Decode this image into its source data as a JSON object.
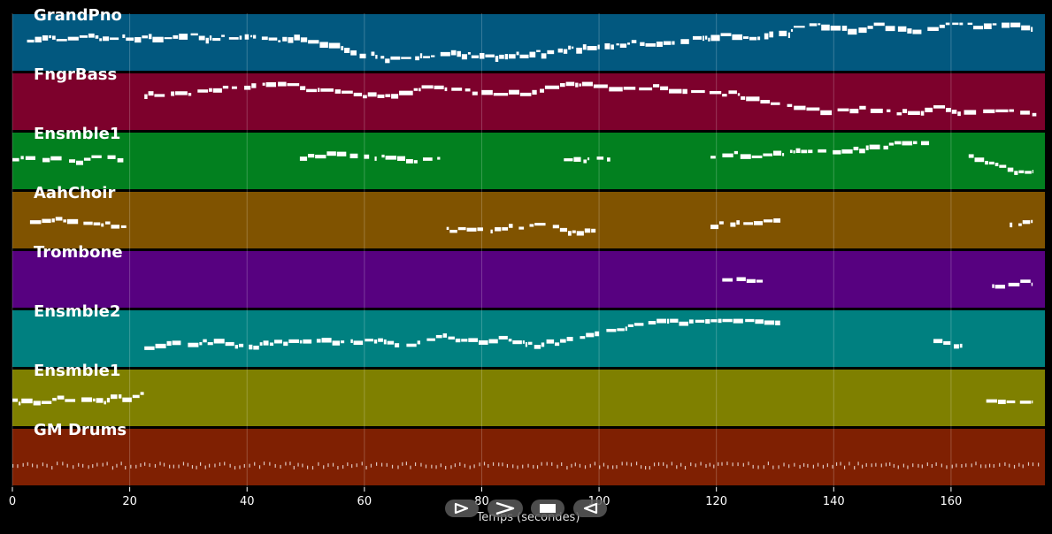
{
  "colors": {
    "background": "#000000",
    "tracks": [
      "#02587f",
      "#7d012c",
      "#02801f",
      "#805300",
      "#570180",
      "#008080",
      "#7f8000",
      "#7f2002"
    ],
    "notes": "#ffffff",
    "grid": "#ffffff"
  },
  "tracks": [
    {
      "name": "GrandPno"
    },
    {
      "name": "FngrBass"
    },
    {
      "name": "Ensmble1"
    },
    {
      "name": "AahChoir"
    },
    {
      "name": "Trombone"
    },
    {
      "name": "Ensmble2"
    },
    {
      "name": "Ensmble1"
    },
    {
      "name": "GM Drums"
    }
  ],
  "controls": [
    {
      "name": "play-button",
      "icon": "play-outline-icon"
    },
    {
      "name": "fast-forward-button",
      "icon": "chevron-right-icon"
    },
    {
      "name": "stop-button",
      "icon": "stop-icon"
    },
    {
      "name": "rewind-button",
      "icon": "play-reverse-outline-icon"
    }
  ],
  "chart_data": {
    "type": "piano-roll",
    "xlabel": "Temps (secondes)",
    "xlim": [
      0,
      176
    ],
    "xticks": [
      "0",
      "20",
      "40",
      "60",
      "80",
      "100",
      "120",
      "140",
      "160"
    ],
    "grid": true,
    "series": [
      {
        "name": "GrandPno",
        "activity": [
          [
            2.5,
            174
          ]
        ]
      },
      {
        "name": "FngrBass",
        "activity": [
          [
            22.5,
            175
          ]
        ]
      },
      {
        "name": "Ensmble1",
        "activity": [
          [
            0,
            19
          ],
          [
            49,
            73
          ],
          [
            94,
            102
          ],
          [
            119,
            157
          ],
          [
            163,
            174
          ]
        ]
      },
      {
        "name": "AahChoir",
        "activity": [
          [
            3,
            19.5
          ],
          [
            74,
            99.5
          ],
          [
            119,
            131
          ],
          [
            170,
            174
          ]
        ]
      },
      {
        "name": "Trombone",
        "activity": [
          [
            121,
            128
          ],
          [
            167,
            174
          ]
        ]
      },
      {
        "name": "Ensmble2",
        "activity": [
          [
            22.5,
            131
          ],
          [
            157,
            162
          ]
        ]
      },
      {
        "name": "Ensmble1",
        "activity": [
          [
            0,
            22.5
          ],
          [
            166,
            174
          ]
        ]
      },
      {
        "name": "GM Drums",
        "activity": [
          [
            0,
            175
          ]
        ]
      }
    ]
  }
}
